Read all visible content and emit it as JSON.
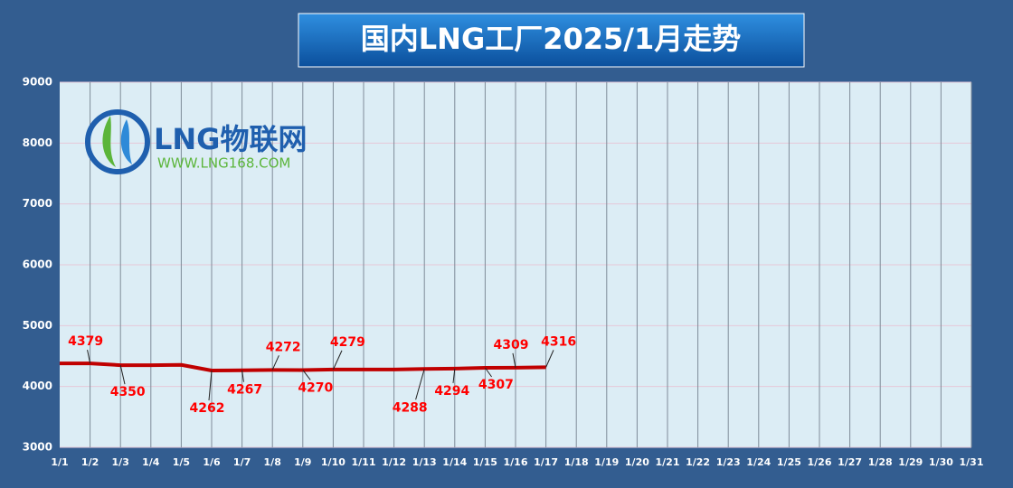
{
  "chart_data": {
    "type": "line",
    "title": "国内LNG工厂2025/1月走势",
    "categories": [
      "1/1",
      "1/2",
      "1/3",
      "1/4",
      "1/5",
      "1/6",
      "1/7",
      "1/8",
      "1/9",
      "1/10",
      "1/11",
      "1/12",
      "1/13",
      "1/14",
      "1/15",
      "1/16",
      "1/17",
      "1/18",
      "1/19",
      "1/20",
      "1/21",
      "1/22",
      "1/23",
      "1/24",
      "1/25",
      "1/26",
      "1/27",
      "1/28",
      "1/29",
      "1/30",
      "1/31"
    ],
    "series": [
      {
        "name": "LNG",
        "color": "#c00000",
        "values": [
          4379,
          4379,
          4350,
          4350,
          4355,
          4262,
          4267,
          4272,
          4270,
          4279,
          4279,
          4279,
          4288,
          4294,
          4307,
          4309,
          4316,
          null,
          null,
          null,
          null,
          null,
          null,
          null,
          null,
          null,
          null,
          null,
          null,
          null,
          null
        ],
        "value_labels": [
          null,
          "4379",
          "4350",
          null,
          null,
          "4262",
          "4267",
          "4272",
          "4270",
          "4279",
          null,
          null,
          "4288",
          "4294",
          "4307",
          "4309",
          "4316",
          null,
          null,
          null,
          null,
          null,
          null,
          null,
          null,
          null,
          null,
          null,
          null,
          null,
          null
        ]
      }
    ],
    "ylim": [
      3000,
      9000
    ],
    "yticks": [
      3000,
      4000,
      5000,
      6000,
      7000,
      8000,
      9000
    ],
    "grid": true
  },
  "logo": {
    "name": "LNG物联网",
    "url": "WWW.LNG168.COM"
  }
}
